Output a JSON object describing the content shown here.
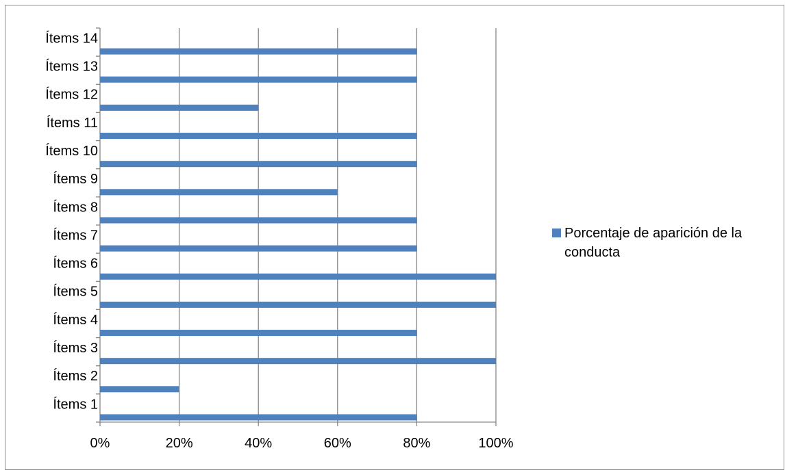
{
  "chart_data": {
    "type": "bar",
    "orientation": "horizontal",
    "categories": [
      "Ítems 1",
      "Ítems 2",
      "Ítems 3",
      "Ítems 4",
      "Ítems 5",
      "Ítems 6",
      "Ítems 7",
      "Ítems 8",
      "Ítems 9",
      "Ítems 10",
      "Ítems 11",
      "Ítems 12",
      "Ítems 13",
      "Ítems 14"
    ],
    "series": [
      {
        "name": "Porcentaje de aparición de la conducta",
        "values": [
          80,
          20,
          100,
          80,
          100,
          100,
          80,
          80,
          60,
          80,
          80,
          40,
          80,
          80
        ]
      }
    ],
    "xlim": [
      0,
      100
    ],
    "xticks": [
      "0%",
      "20%",
      "40%",
      "60%",
      "80%",
      "100%"
    ],
    "grid": "vertical",
    "legend_position": "right",
    "title": "",
    "xlabel": "",
    "ylabel": "",
    "colors": {
      "bar": "#4f81bd",
      "grid": "#868686",
      "axis": "#868686"
    }
  }
}
